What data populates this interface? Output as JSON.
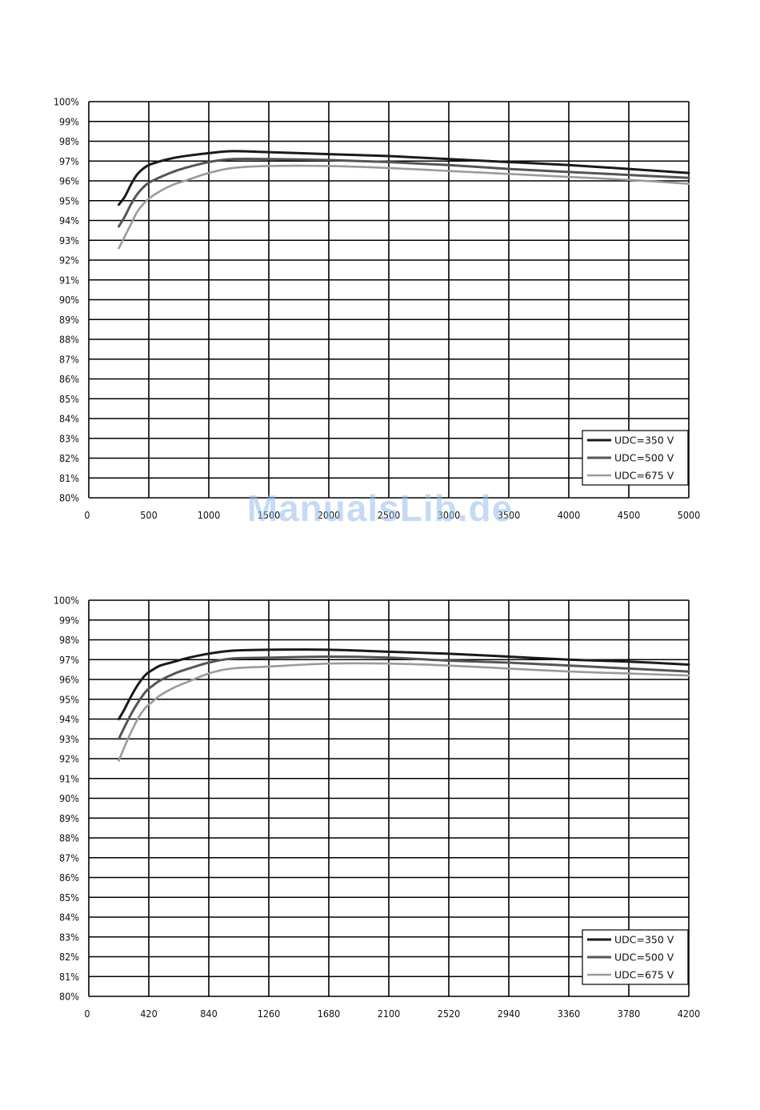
{
  "watermark": "ManualsLib.de",
  "colors": {
    "series": [
      "#1a1a1a",
      "#555555",
      "#9a9a9a"
    ],
    "grid": "#000000"
  },
  "chart_data": [
    {
      "type": "line",
      "grid": true,
      "legend_position": "bottom-right",
      "xlim": [
        0,
        5000
      ],
      "ylim": [
        80,
        100
      ],
      "x_ticks": [
        "0",
        "500",
        "1000",
        "1500",
        "2000",
        "2500",
        "3000",
        "3500",
        "4000",
        "4500",
        "5000"
      ],
      "y_ticks": [
        "80%",
        "81%",
        "82%",
        "83%",
        "84%",
        "85%",
        "86%",
        "87%",
        "88%",
        "89%",
        "90%",
        "91%",
        "92%",
        "93%",
        "94%",
        "95%",
        "96%",
        "97%",
        "98%",
        "99%",
        "100%"
      ],
      "series": [
        {
          "name": "UDC=350 V",
          "x": [
            250,
            300,
            350,
            400,
            450,
            500,
            600,
            700,
            800,
            1000,
            1200,
            1500,
            2000,
            2500,
            3000,
            3500,
            4000,
            4500,
            5000
          ],
          "y": [
            94.8,
            95.2,
            95.8,
            96.3,
            96.6,
            96.8,
            97.0,
            97.15,
            97.25,
            97.4,
            97.5,
            97.45,
            97.35,
            97.25,
            97.1,
            96.95,
            96.8,
            96.6,
            96.4
          ]
        },
        {
          "name": "UDC=500 V",
          "x": [
            250,
            300,
            350,
            400,
            450,
            500,
            600,
            700,
            800,
            1000,
            1200,
            1500,
            2000,
            2500,
            3000,
            3500,
            4000,
            4500,
            5000
          ],
          "y": [
            93.7,
            94.2,
            94.8,
            95.3,
            95.65,
            95.9,
            96.2,
            96.45,
            96.65,
            96.95,
            97.1,
            97.1,
            97.05,
            96.95,
            96.8,
            96.6,
            96.45,
            96.3,
            96.15
          ]
        },
        {
          "name": "UDC=675 V",
          "x": [
            250,
            300,
            350,
            400,
            450,
            500,
            600,
            700,
            800,
            1000,
            1200,
            1500,
            2000,
            2500,
            3000,
            3500,
            4000,
            4500,
            5000
          ],
          "y": [
            92.6,
            93.2,
            93.8,
            94.4,
            94.8,
            95.1,
            95.5,
            95.8,
            96.0,
            96.4,
            96.65,
            96.75,
            96.75,
            96.65,
            96.5,
            96.35,
            96.2,
            96.05,
            95.85
          ]
        }
      ]
    },
    {
      "type": "line",
      "grid": true,
      "legend_position": "bottom-right",
      "xlim": [
        0,
        4200
      ],
      "ylim": [
        80,
        100
      ],
      "x_ticks": [
        "0",
        "420",
        "840",
        "1260",
        "1680",
        "2100",
        "2520",
        "2940",
        "3360",
        "3780",
        "4200"
      ],
      "y_ticks": [
        "80%",
        "81%",
        "82%",
        "83%",
        "84%",
        "85%",
        "86%",
        "87%",
        "88%",
        "89%",
        "90%",
        "91%",
        "92%",
        "93%",
        "94%",
        "95%",
        "96%",
        "97%",
        "98%",
        "99%",
        "100%"
      ],
      "series": [
        {
          "name": "UDC=350 V",
          "x": [
            210,
            250,
            300,
            350,
            400,
            450,
            500,
            600,
            700,
            840,
            1000,
            1260,
            1680,
            2100,
            2520,
            2940,
            3360,
            3780,
            4200
          ],
          "y": [
            94.0,
            94.5,
            95.2,
            95.8,
            96.25,
            96.5,
            96.7,
            96.9,
            97.1,
            97.3,
            97.45,
            97.5,
            97.5,
            97.4,
            97.3,
            97.15,
            97.0,
            96.9,
            96.75
          ]
        },
        {
          "name": "UDC=500 V",
          "x": [
            210,
            250,
            300,
            350,
            400,
            450,
            500,
            600,
            700,
            840,
            1000,
            1260,
            1680,
            2100,
            2520,
            2940,
            3360,
            3780,
            4200
          ],
          "y": [
            93.0,
            93.6,
            94.3,
            94.9,
            95.4,
            95.7,
            95.95,
            96.3,
            96.55,
            96.85,
            97.05,
            97.1,
            97.15,
            97.1,
            96.95,
            96.85,
            96.7,
            96.55,
            96.4
          ]
        },
        {
          "name": "UDC=675 V",
          "x": [
            210,
            250,
            300,
            350,
            400,
            450,
            500,
            600,
            700,
            840,
            1000,
            1260,
            1680,
            2100,
            2520,
            2940,
            3360,
            3780,
            4200
          ],
          "y": [
            91.9,
            92.6,
            93.4,
            94.1,
            94.6,
            94.9,
            95.2,
            95.6,
            95.9,
            96.3,
            96.55,
            96.65,
            96.8,
            96.8,
            96.7,
            96.55,
            96.4,
            96.3,
            96.2
          ]
        }
      ]
    }
  ]
}
